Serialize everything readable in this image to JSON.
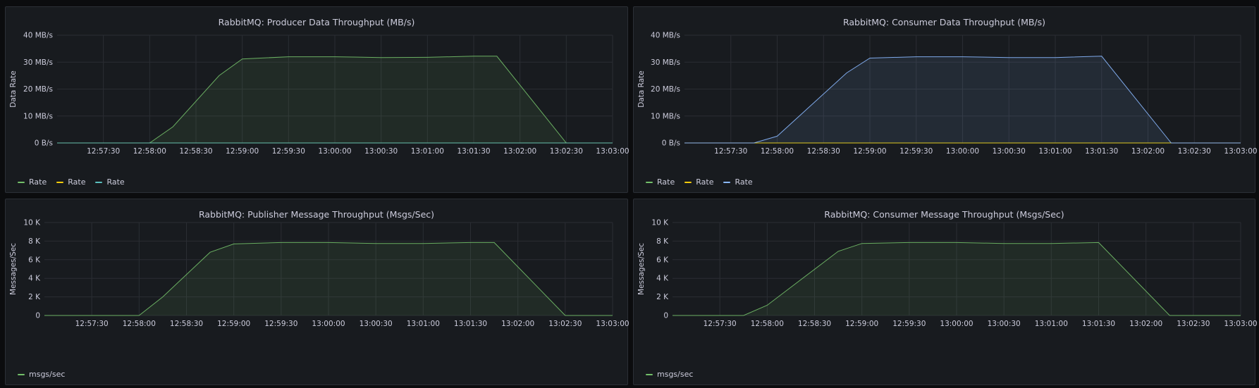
{
  "colors": {
    "green": "#73bf69",
    "yellow": "#f2cc0c",
    "blue": "#8ab8ff",
    "teal": "#5bc0be"
  },
  "chart_data": [
    {
      "type": "area",
      "title": "RabbitMQ: Producer Data Throughput (MB/s)",
      "ylabel": "Data Rate",
      "xlabel": "",
      "ylim": [
        0,
        40
      ],
      "yticks": [
        0,
        10,
        20,
        30,
        40
      ],
      "ytick_labels": [
        "0 B/s",
        "10 MB/s",
        "20 MB/s",
        "30 MB/s",
        "40 MB/s"
      ],
      "xlim": [
        "12:57:00",
        "12:03:00"
      ],
      "x_range_seconds": [
        0,
        360
      ],
      "xticks": [
        "12:57:30",
        "12:58:00",
        "12:58:30",
        "12:59:00",
        "12:59:30",
        "13:00:00",
        "13:00:30",
        "13:01:00",
        "13:01:30",
        "13:02:00",
        "13:02:30",
        "13:03:00"
      ],
      "grid": true,
      "legend_position": "bottom-left",
      "legend": [
        "Rate",
        "Rate",
        "Rate"
      ],
      "series": [
        {
          "name": "Rate",
          "color": "#73bf69",
          "fill": true,
          "x": [
            "12:57:00",
            "12:58:00",
            "12:58:15",
            "12:58:45",
            "12:59:00",
            "12:59:30",
            "13:00:00",
            "13:00:30",
            "13:01:00",
            "13:01:30",
            "13:01:45",
            "13:02:30",
            "13:03:00"
          ],
          "values": [
            0,
            0,
            6,
            25,
            31.2,
            32,
            32,
            31.7,
            31.8,
            32.2,
            32.2,
            0,
            0
          ]
        },
        {
          "name": "Rate",
          "color": "#f2cc0c",
          "fill": false,
          "x": [
            "12:57:00",
            "13:03:00"
          ],
          "values": [
            0,
            0
          ]
        },
        {
          "name": "Rate",
          "color": "#5bc0be",
          "fill": false,
          "x": [
            "12:57:00",
            "13:03:00"
          ],
          "values": [
            0,
            0
          ]
        }
      ]
    },
    {
      "type": "area",
      "title": "RabbitMQ: Consumer Data Throughput (MB/s)",
      "ylabel": "Data Rate",
      "xlabel": "",
      "ylim": [
        0,
        40
      ],
      "yticks": [
        0,
        10,
        20,
        30,
        40
      ],
      "ytick_labels": [
        "0 B/s",
        "10 MB/s",
        "20 MB/s",
        "30 MB/s",
        "40 MB/s"
      ],
      "xticks": [
        "12:57:30",
        "12:58:00",
        "12:58:30",
        "12:59:00",
        "12:59:30",
        "13:00:00",
        "13:00:30",
        "13:01:00",
        "13:01:30",
        "13:02:00",
        "13:02:30",
        "13:03:00"
      ],
      "grid": true,
      "legend_position": "bottom-left",
      "legend": [
        "Rate",
        "Rate",
        "Rate"
      ],
      "series": [
        {
          "name": "Rate",
          "color": "#73bf69",
          "fill": false,
          "x": [
            "12:57:00",
            "13:03:00"
          ],
          "values": [
            0,
            0
          ]
        },
        {
          "name": "Rate",
          "color": "#f2cc0c",
          "fill": false,
          "x": [
            "12:57:00",
            "13:03:00"
          ],
          "values": [
            0,
            0
          ]
        },
        {
          "name": "Rate",
          "color": "#8ab8ff",
          "fill": true,
          "x": [
            "12:57:00",
            "12:57:45",
            "12:58:00",
            "12:58:45",
            "12:59:00",
            "12:59:30",
            "13:00:00",
            "13:00:30",
            "13:01:00",
            "13:01:30",
            "13:02:15",
            "13:03:00"
          ],
          "values": [
            0,
            0,
            2.5,
            26,
            31.5,
            32,
            32,
            31.7,
            31.7,
            32.2,
            0,
            0
          ]
        }
      ]
    },
    {
      "type": "area",
      "title": "RabbitMQ: Publisher Message Throughput (Msgs/Sec)",
      "ylabel": "Messages/Sec",
      "xlabel": "",
      "ylim": [
        0,
        10000
      ],
      "yticks": [
        0,
        2000,
        4000,
        6000,
        8000,
        10000
      ],
      "ytick_labels": [
        "0",
        "2 K",
        "4 K",
        "6 K",
        "8 K",
        "10 K"
      ],
      "xticks": [
        "12:57:30",
        "12:58:00",
        "12:58:30",
        "12:59:00",
        "12:59:30",
        "13:00:00",
        "13:00:30",
        "13:01:00",
        "13:01:30",
        "13:02:00",
        "13:02:30",
        "13:03:00"
      ],
      "grid": true,
      "legend_position": "bottom-left",
      "legend": [
        "msgs/sec"
      ],
      "series": [
        {
          "name": "msgs/sec",
          "color": "#73bf69",
          "fill": true,
          "x": [
            "12:57:00",
            "12:58:00",
            "12:58:15",
            "12:58:45",
            "12:59:00",
            "12:59:30",
            "13:00:00",
            "13:00:30",
            "13:01:00",
            "13:01:30",
            "13:01:45",
            "13:02:30",
            "13:03:00"
          ],
          "values": [
            0,
            0,
            2000,
            6800,
            7700,
            7850,
            7850,
            7750,
            7750,
            7850,
            7850,
            0,
            0
          ]
        }
      ]
    },
    {
      "type": "area",
      "title": "RabbitMQ: Consumer Message Throughput (Msgs/Sec)",
      "ylabel": "Messages/Sec",
      "xlabel": "",
      "ylim": [
        0,
        10000
      ],
      "yticks": [
        0,
        2000,
        4000,
        6000,
        8000,
        10000
      ],
      "ytick_labels": [
        "0",
        "2 K",
        "4 K",
        "6 K",
        "8 K",
        "10 K"
      ],
      "xticks": [
        "12:57:30",
        "12:58:00",
        "12:58:30",
        "12:59:00",
        "12:59:30",
        "13:00:00",
        "13:00:30",
        "13:01:00",
        "13:01:30",
        "13:02:00",
        "13:02:30",
        "13:03:00"
      ],
      "grid": true,
      "legend_position": "bottom-left",
      "legend": [
        "msgs/sec"
      ],
      "series": [
        {
          "name": "msgs/sec",
          "color": "#73bf69",
          "fill": true,
          "x": [
            "12:57:00",
            "12:57:45",
            "12:58:00",
            "12:58:45",
            "12:59:00",
            "12:59:30",
            "13:00:00",
            "13:00:30",
            "13:01:00",
            "13:01:30",
            "13:02:15",
            "13:03:00"
          ],
          "values": [
            0,
            0,
            1100,
            6900,
            7750,
            7850,
            7850,
            7750,
            7750,
            7850,
            0,
            0
          ]
        }
      ]
    }
  ]
}
